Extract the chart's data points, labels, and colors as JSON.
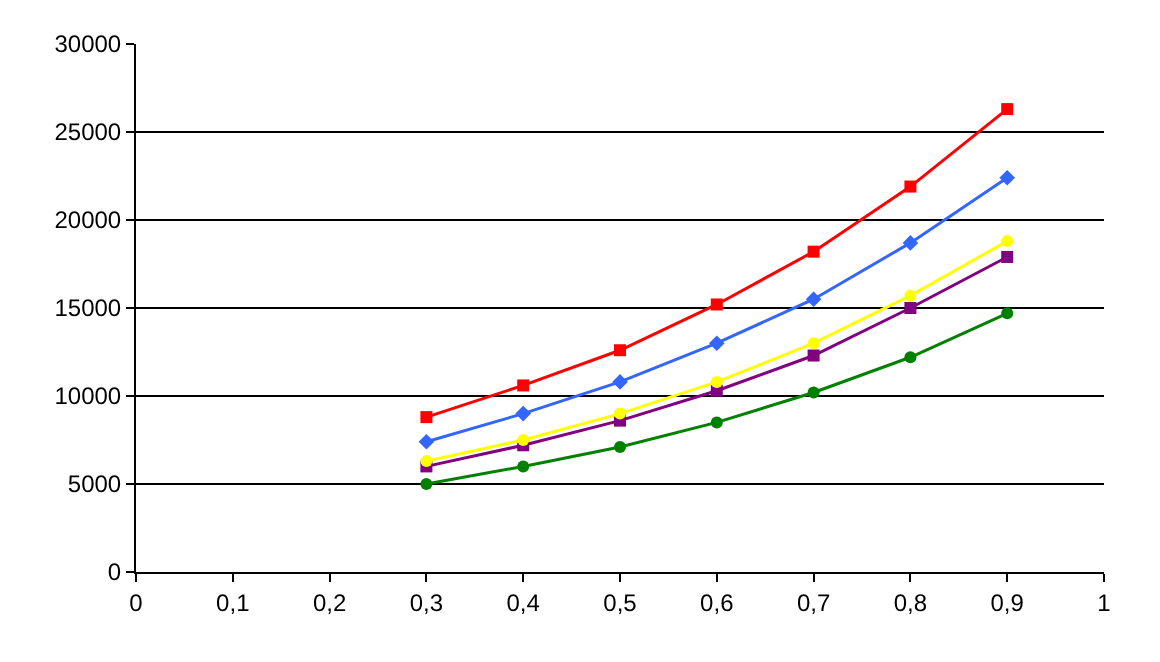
{
  "chart_data": {
    "type": "line",
    "x": [
      0.3,
      0.4,
      0.5,
      0.6,
      0.7,
      0.8,
      0.9
    ],
    "series": [
      {
        "color": "#ff0000",
        "marker": "square",
        "values": [
          8800,
          10600,
          12600,
          15200,
          18200,
          21900,
          26300
        ]
      },
      {
        "color": "#3366ff",
        "marker": "diamond",
        "values": [
          7400,
          9000,
          10800,
          13000,
          15500,
          18700,
          22400
        ]
      },
      {
        "color": "#ffff00",
        "marker": "circle",
        "values": [
          6300,
          7500,
          9000,
          10800,
          13000,
          15700,
          18800
        ]
      },
      {
        "color": "#800080",
        "marker": "square",
        "values": [
          6000,
          7200,
          8600,
          10300,
          12300,
          15000,
          17900
        ]
      },
      {
        "color": "#008000",
        "marker": "circle",
        "values": [
          5000,
          6000,
          7100,
          8500,
          10200,
          12200,
          14700
        ]
      }
    ],
    "xlim": [
      0,
      1
    ],
    "xticks": [
      0,
      {
        "value": 0.1,
        "label": "0,1"
      },
      {
        "value": 0.2,
        "label": "0,2"
      },
      {
        "value": 0.3,
        "label": "0,3"
      },
      {
        "value": 0.4,
        "label": "0,4"
      },
      {
        "value": 0.5,
        "label": "0,5"
      },
      {
        "value": 0.6,
        "label": "0,6"
      },
      {
        "value": 0.7,
        "label": "0,7"
      },
      {
        "value": 0.8,
        "label": "0,8"
      },
      {
        "value": 0.9,
        "label": "0,9"
      },
      1
    ],
    "ylim": [
      0,
      30000
    ],
    "yticks": [
      0,
      5000,
      10000,
      15000,
      20000,
      25000,
      30000
    ],
    "grid": "y",
    "line_style": "solid"
  }
}
